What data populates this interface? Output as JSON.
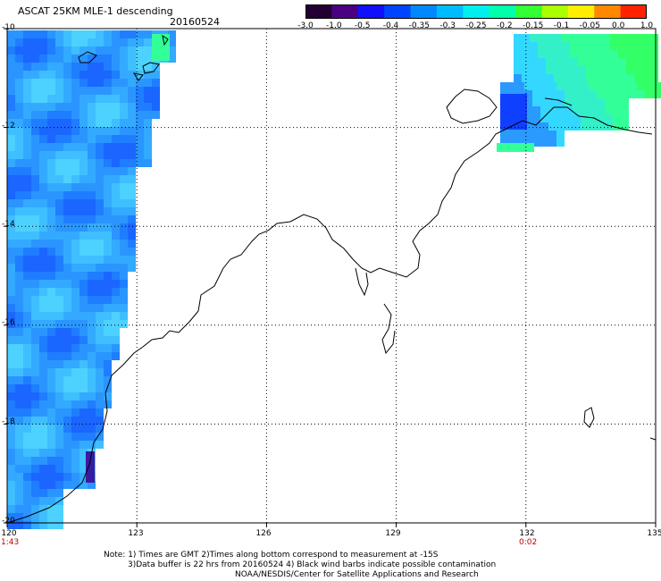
{
  "header": {
    "title": "ASCAT 25KM MLE-1 descending",
    "date": "20160524"
  },
  "colorbar": {
    "labels": [
      "-3.0",
      "-1.0",
      "-0.5",
      "-0.4",
      "-0.35",
      "-0.3",
      "-0.25",
      "-0.2",
      "-0.15",
      "-0.1",
      "-0.05",
      "0.0",
      "1.0"
    ],
    "colors": [
      "#220033",
      "#4b0082",
      "#1010ff",
      "#0044ff",
      "#0088ff",
      "#00bbff",
      "#00eeee",
      "#00ffaa",
      "#33ff33",
      "#aaff00",
      "#ffee00",
      "#ff8800",
      "#ff2200"
    ]
  },
  "map": {
    "lat_labels": [
      "-10",
      "-12",
      "-14",
      "-16",
      "-18",
      "-20"
    ],
    "lon_labels": [
      "120",
      "123",
      "126",
      "129",
      "132",
      "135"
    ],
    "time_labels": [
      "1:43",
      "0:02"
    ],
    "lat_range": [
      -20,
      -10
    ],
    "lon_range": [
      120,
      135
    ],
    "grid": "dotted"
  },
  "notes": {
    "line1": "Note: 1) Times are GMT 2)Times along bottom correspond to measurement at -15S",
    "line2": "3)Data buffer is 22 hrs from 20160524 4) Black wind barbs indicate possible contamination",
    "line3": "NOAA/NESDIS/Center for Satellite Applications and Research"
  }
}
